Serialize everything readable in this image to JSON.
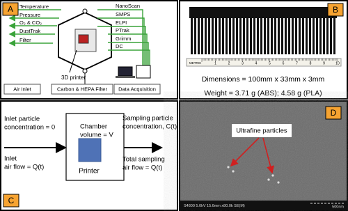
{
  "panels": {
    "a": {
      "label": "A",
      "left_inputs": [
        "Temperature",
        "Pressure",
        "O₂ & CO₂",
        "DustTrak",
        "Filter"
      ],
      "right_instruments": [
        "NanoScan",
        "SMPS",
        "ELPI",
        "PTrak",
        "Grimm",
        "DC"
      ],
      "printer": "3D printer",
      "bottom_boxes": [
        "Air Inlet",
        "Carbon & HEPA Filter",
        "Data Acquisition"
      ]
    },
    "b": {
      "label": "B",
      "ruler_labels": [
        "METRIC",
        "1",
        "2",
        "3",
        "4",
        "5",
        "6",
        "7",
        "8",
        "9",
        "10"
      ],
      "dimensions": "Dimensions = 100mm x 33mm x 3mm",
      "weight": "Weight = 3.71 g (ABS); 4.58 g (PLA)"
    },
    "c": {
      "label": "C",
      "inlet_concentration": [
        "Inlet particle",
        "concentration = 0"
      ],
      "inlet_flow": [
        "Inlet",
        "air flow = Q(t)"
      ],
      "chamber": [
        "Chamber",
        "volume = V"
      ],
      "printer": "Printer",
      "sampling_concentration": [
        "Sampling particle",
        "concentration, C(t)"
      ],
      "sampling_flow": [
        "Total sampling",
        "air flow = Q(t)"
      ]
    },
    "d": {
      "label": "D",
      "annotation": "Ultrafine particles",
      "info_bar": "S4800 5.0kV 15.6mm x80.0k SE(M)",
      "scale": "500nm"
    }
  }
}
